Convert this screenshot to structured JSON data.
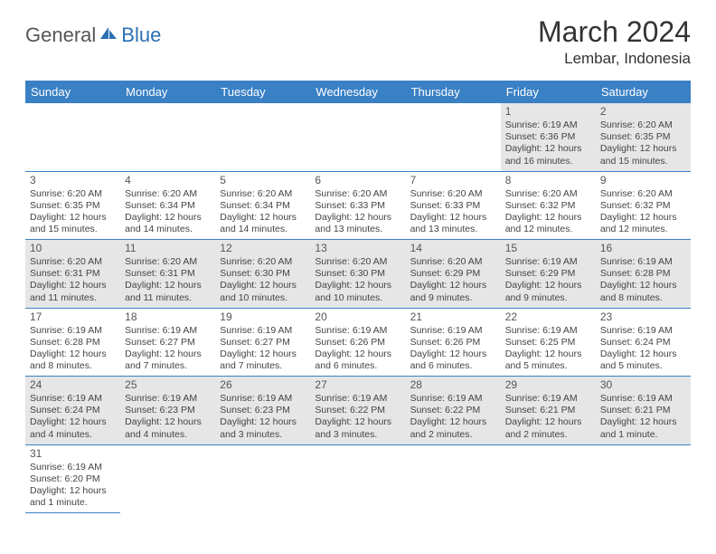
{
  "brand": {
    "part1": "General",
    "part2": "Blue"
  },
  "title": "March 2024",
  "location": "Lembar, Indonesia",
  "colors": {
    "header_bg": "#3a80c4",
    "header_text": "#ffffff",
    "row_odd_bg": "#e6e6e6",
    "row_even_bg": "#ffffff",
    "border": "#3a80c4",
    "logo_blue": "#2b6fb3"
  },
  "weekdays": [
    "Sunday",
    "Monday",
    "Tuesday",
    "Wednesday",
    "Thursday",
    "Friday",
    "Saturday"
  ],
  "weeks": [
    [
      null,
      null,
      null,
      null,
      null,
      {
        "n": "1",
        "sr": "6:19 AM",
        "ss": "6:36 PM",
        "dl": "12 hours and 16 minutes."
      },
      {
        "n": "2",
        "sr": "6:20 AM",
        "ss": "6:35 PM",
        "dl": "12 hours and 15 minutes."
      }
    ],
    [
      {
        "n": "3",
        "sr": "6:20 AM",
        "ss": "6:35 PM",
        "dl": "12 hours and 15 minutes."
      },
      {
        "n": "4",
        "sr": "6:20 AM",
        "ss": "6:34 PM",
        "dl": "12 hours and 14 minutes."
      },
      {
        "n": "5",
        "sr": "6:20 AM",
        "ss": "6:34 PM",
        "dl": "12 hours and 14 minutes."
      },
      {
        "n": "6",
        "sr": "6:20 AM",
        "ss": "6:33 PM",
        "dl": "12 hours and 13 minutes."
      },
      {
        "n": "7",
        "sr": "6:20 AM",
        "ss": "6:33 PM",
        "dl": "12 hours and 13 minutes."
      },
      {
        "n": "8",
        "sr": "6:20 AM",
        "ss": "6:32 PM",
        "dl": "12 hours and 12 minutes."
      },
      {
        "n": "9",
        "sr": "6:20 AM",
        "ss": "6:32 PM",
        "dl": "12 hours and 12 minutes."
      }
    ],
    [
      {
        "n": "10",
        "sr": "6:20 AM",
        "ss": "6:31 PM",
        "dl": "12 hours and 11 minutes."
      },
      {
        "n": "11",
        "sr": "6:20 AM",
        "ss": "6:31 PM",
        "dl": "12 hours and 11 minutes."
      },
      {
        "n": "12",
        "sr": "6:20 AM",
        "ss": "6:30 PM",
        "dl": "12 hours and 10 minutes."
      },
      {
        "n": "13",
        "sr": "6:20 AM",
        "ss": "6:30 PM",
        "dl": "12 hours and 10 minutes."
      },
      {
        "n": "14",
        "sr": "6:20 AM",
        "ss": "6:29 PM",
        "dl": "12 hours and 9 minutes."
      },
      {
        "n": "15",
        "sr": "6:19 AM",
        "ss": "6:29 PM",
        "dl": "12 hours and 9 minutes."
      },
      {
        "n": "16",
        "sr": "6:19 AM",
        "ss": "6:28 PM",
        "dl": "12 hours and 8 minutes."
      }
    ],
    [
      {
        "n": "17",
        "sr": "6:19 AM",
        "ss": "6:28 PM",
        "dl": "12 hours and 8 minutes."
      },
      {
        "n": "18",
        "sr": "6:19 AM",
        "ss": "6:27 PM",
        "dl": "12 hours and 7 minutes."
      },
      {
        "n": "19",
        "sr": "6:19 AM",
        "ss": "6:27 PM",
        "dl": "12 hours and 7 minutes."
      },
      {
        "n": "20",
        "sr": "6:19 AM",
        "ss": "6:26 PM",
        "dl": "12 hours and 6 minutes."
      },
      {
        "n": "21",
        "sr": "6:19 AM",
        "ss": "6:26 PM",
        "dl": "12 hours and 6 minutes."
      },
      {
        "n": "22",
        "sr": "6:19 AM",
        "ss": "6:25 PM",
        "dl": "12 hours and 5 minutes."
      },
      {
        "n": "23",
        "sr": "6:19 AM",
        "ss": "6:24 PM",
        "dl": "12 hours and 5 minutes."
      }
    ],
    [
      {
        "n": "24",
        "sr": "6:19 AM",
        "ss": "6:24 PM",
        "dl": "12 hours and 4 minutes."
      },
      {
        "n": "25",
        "sr": "6:19 AM",
        "ss": "6:23 PM",
        "dl": "12 hours and 4 minutes."
      },
      {
        "n": "26",
        "sr": "6:19 AM",
        "ss": "6:23 PM",
        "dl": "12 hours and 3 minutes."
      },
      {
        "n": "27",
        "sr": "6:19 AM",
        "ss": "6:22 PM",
        "dl": "12 hours and 3 minutes."
      },
      {
        "n": "28",
        "sr": "6:19 AM",
        "ss": "6:22 PM",
        "dl": "12 hours and 2 minutes."
      },
      {
        "n": "29",
        "sr": "6:19 AM",
        "ss": "6:21 PM",
        "dl": "12 hours and 2 minutes."
      },
      {
        "n": "30",
        "sr": "6:19 AM",
        "ss": "6:21 PM",
        "dl": "12 hours and 1 minute."
      }
    ],
    [
      {
        "n": "31",
        "sr": "6:19 AM",
        "ss": "6:20 PM",
        "dl": "12 hours and 1 minute."
      },
      null,
      null,
      null,
      null,
      null,
      null
    ]
  ],
  "labels": {
    "sunrise": "Sunrise:",
    "sunset": "Sunset:",
    "daylight": "Daylight:"
  }
}
